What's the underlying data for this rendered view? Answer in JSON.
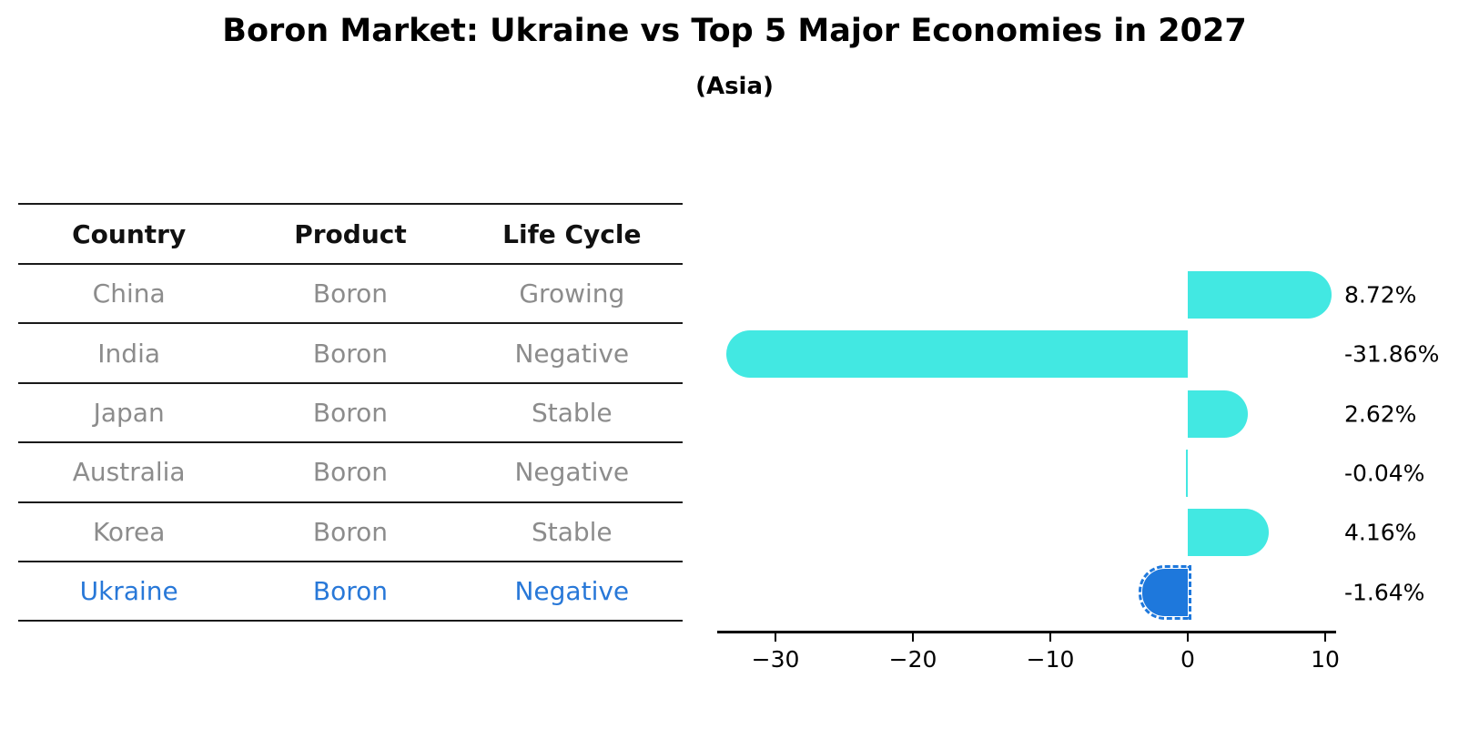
{
  "title": "Boron Market: Ukraine vs Top 5 Major Economies in 2027",
  "subtitle": "(Asia)",
  "table": {
    "headers": [
      "Country",
      "Product",
      "Life Cycle"
    ],
    "rows": [
      {
        "country": "China",
        "product": "Boron",
        "life_cycle": "Growing",
        "highlight": false
      },
      {
        "country": "India",
        "product": "Boron",
        "life_cycle": "Negative",
        "highlight": false
      },
      {
        "country": "Japan",
        "product": "Boron",
        "life_cycle": "Stable",
        "highlight": false
      },
      {
        "country": "Australia",
        "product": "Boron",
        "life_cycle": "Negative",
        "highlight": false
      },
      {
        "country": "Korea",
        "product": "Boron",
        "life_cycle": "Stable",
        "highlight": false
      },
      {
        "country": "Ukraine",
        "product": "Boron",
        "life_cycle": "Negative",
        "highlight": true
      }
    ]
  },
  "chart_data": {
    "type": "bar",
    "orientation": "horizontal",
    "categories": [
      "China",
      "India",
      "Japan",
      "Australia",
      "Korea",
      "Ukraine"
    ],
    "values": [
      8.72,
      -31.86,
      2.62,
      -0.04,
      4.16,
      -1.64
    ],
    "value_labels": [
      "8.72%",
      "-31.86%",
      "2.62%",
      "-0.04%",
      "4.16%",
      "-1.64%"
    ],
    "highlight_index": 5,
    "xticks": [
      -30,
      -20,
      -10,
      0,
      10
    ],
    "xtick_labels": [
      "−30",
      "−20",
      "−10",
      "0",
      "10"
    ],
    "xlim": [
      -34.2,
      10.8
    ],
    "grid": false,
    "legend": "none",
    "title": "Boron Market: Ukraine vs Top 5 Major Economies in 2027",
    "subtitle": "(Asia)",
    "xlabel": "",
    "ylabel": ""
  },
  "colors": {
    "bar": "#42E8E2",
    "highlight": "#1E78DC",
    "highlight_text": "#2878d8",
    "row_text": "#8c8c8c",
    "line": "#1a1a1a"
  }
}
